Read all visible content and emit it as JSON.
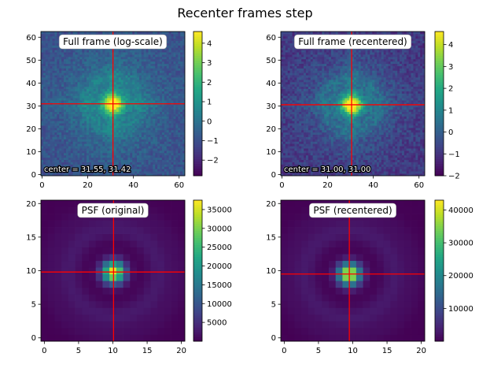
{
  "figure": {
    "title": "Recenter frames step"
  },
  "chart_data": [
    {
      "type": "heatmap",
      "title": "Full frame (log-scale)",
      "annotation": "center = 31.55, 31.42",
      "xlim": [
        0,
        63
      ],
      "ylim": [
        0,
        63
      ],
      "xticks": [
        0,
        20,
        40,
        60
      ],
      "yticks": [
        0,
        10,
        20,
        30,
        40,
        50,
        60
      ],
      "grid_size": 63,
      "center": [
        31.55,
        31.42
      ],
      "colorbar": {
        "min": -2.8,
        "max": 4.6,
        "ticks": [
          -2,
          -1,
          0,
          1,
          2,
          3,
          4
        ]
      },
      "image_model": "log_frame",
      "crosshair_color": "#ff0000"
    },
    {
      "type": "heatmap",
      "title": "Full frame (recentered)",
      "annotation": "center = 31.00, 31.00",
      "xlim": [
        0,
        63
      ],
      "ylim": [
        0,
        63
      ],
      "xticks": [
        0,
        20,
        40,
        60
      ],
      "yticks": [
        0,
        10,
        20,
        30,
        40,
        50,
        60
      ],
      "grid_size": 63,
      "center": [
        31.0,
        31.0
      ],
      "colorbar": {
        "min": -2.0,
        "max": 4.6,
        "ticks": [
          -2,
          -1,
          0,
          1,
          2,
          3,
          4
        ]
      },
      "image_model": "log_frame",
      "crosshair_color": "#ff0000"
    },
    {
      "type": "heatmap",
      "title": "PSF (original)",
      "annotation": "",
      "xlim": [
        0,
        21
      ],
      "ylim": [
        0,
        21
      ],
      "xticks": [
        0,
        5,
        10,
        15,
        20
      ],
      "yticks": [
        0,
        5,
        10,
        15,
        20
      ],
      "grid_size": 21,
      "center": [
        10.6,
        10.3
      ],
      "colorbar": {
        "min": 0,
        "max": 37500,
        "ticks": [
          5000,
          10000,
          15000,
          20000,
          25000,
          30000,
          35000
        ]
      },
      "image_model": "psf",
      "crosshair_color": "#ff0000"
    },
    {
      "type": "heatmap",
      "title": "PSF (recentered)",
      "annotation": "",
      "xlim": [
        0,
        21
      ],
      "ylim": [
        0,
        21
      ],
      "xticks": [
        0,
        5,
        10,
        15,
        20
      ],
      "yticks": [
        0,
        5,
        10,
        15,
        20
      ],
      "grid_size": 21,
      "center": [
        10.0,
        10.0
      ],
      "colorbar": {
        "min": 0,
        "max": 43000,
        "ticks": [
          10000,
          20000,
          30000,
          40000
        ]
      },
      "image_model": "psf",
      "crosshair_color": "#ff0000"
    }
  ]
}
